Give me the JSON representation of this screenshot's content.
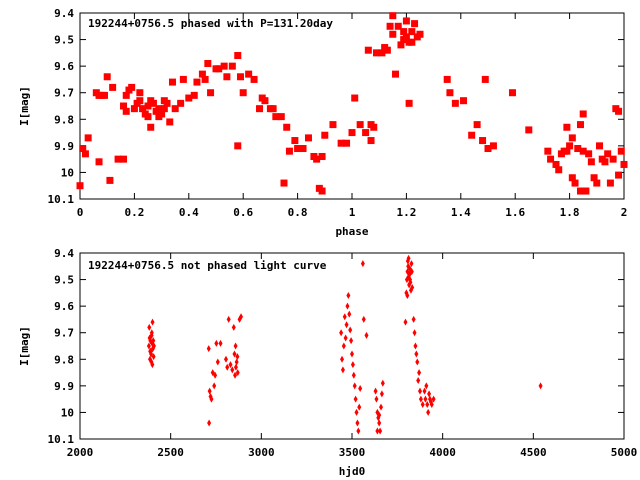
{
  "chart_data": [
    {
      "type": "scatter",
      "title": "192244+0756.5 phased with P=131.20day",
      "xlabel": "phase",
      "ylabel": "I[mag]",
      "xlim": [
        0,
        2
      ],
      "ylim": [
        9.4,
        10.1
      ],
      "y_inverted": true,
      "xticks": [
        "0",
        "0.2",
        "0.4",
        "0.6",
        "0.8",
        "1",
        "1.2",
        "1.4",
        "1.6",
        "1.8",
        "2"
      ],
      "yticks": [
        "9.4",
        "9.5",
        "9.6",
        "9.7",
        "9.8",
        "9.9",
        "10",
        "10.1"
      ],
      "marker": "filled-square",
      "color": "#ff0000",
      "grid": false,
      "points": [
        [
          0.0,
          10.05
        ],
        [
          0.01,
          9.91
        ],
        [
          0.02,
          9.93
        ],
        [
          0.03,
          9.87
        ],
        [
          0.06,
          9.7
        ],
        [
          0.07,
          9.96
        ],
        [
          0.07,
          9.71
        ],
        [
          0.08,
          9.71
        ],
        [
          0.09,
          9.71
        ],
        [
          0.1,
          9.64
        ],
        [
          0.11,
          10.03
        ],
        [
          0.12,
          9.68
        ],
        [
          0.14,
          9.95
        ],
        [
          0.16,
          9.95
        ],
        [
          0.16,
          9.75
        ],
        [
          0.17,
          9.71
        ],
        [
          0.17,
          9.77
        ],
        [
          0.18,
          9.69
        ],
        [
          0.19,
          9.68
        ],
        [
          0.2,
          9.76
        ],
        [
          0.21,
          9.74
        ],
        [
          0.22,
          9.73
        ],
        [
          0.22,
          9.7
        ],
        [
          0.23,
          9.76
        ],
        [
          0.24,
          9.78
        ],
        [
          0.25,
          9.75
        ],
        [
          0.25,
          9.79
        ],
        [
          0.26,
          9.73
        ],
        [
          0.26,
          9.83
        ],
        [
          0.27,
          9.74
        ],
        [
          0.28,
          9.77
        ],
        [
          0.29,
          9.76
        ],
        [
          0.29,
          9.79
        ],
        [
          0.3,
          9.78
        ],
        [
          0.31,
          9.73
        ],
        [
          0.31,
          9.76
        ],
        [
          0.32,
          9.74
        ],
        [
          0.33,
          9.81
        ],
        [
          0.34,
          9.66
        ],
        [
          0.35,
          9.76
        ],
        [
          0.37,
          9.74
        ],
        [
          0.38,
          9.65
        ],
        [
          0.4,
          9.72
        ],
        [
          0.42,
          9.71
        ],
        [
          0.43,
          9.66
        ],
        [
          0.45,
          9.63
        ],
        [
          0.46,
          9.65
        ],
        [
          0.47,
          9.59
        ],
        [
          0.48,
          9.7
        ],
        [
          0.5,
          9.61
        ],
        [
          0.51,
          9.61
        ],
        [
          0.53,
          9.6
        ],
        [
          0.54,
          9.64
        ],
        [
          0.56,
          9.6
        ],
        [
          0.58,
          9.56
        ],
        [
          0.58,
          9.9
        ],
        [
          0.59,
          9.64
        ],
        [
          0.6,
          9.7
        ],
        [
          0.62,
          9.63
        ],
        [
          0.64,
          9.65
        ],
        [
          0.66,
          9.76
        ],
        [
          0.67,
          9.72
        ],
        [
          0.68,
          9.73
        ],
        [
          0.7,
          9.76
        ],
        [
          0.71,
          9.76
        ],
        [
          0.72,
          9.79
        ],
        [
          0.74,
          9.79
        ],
        [
          0.75,
          10.04
        ],
        [
          0.76,
          9.83
        ],
        [
          0.77,
          9.92
        ],
        [
          0.79,
          9.88
        ],
        [
          0.8,
          9.91
        ],
        [
          0.82,
          9.91
        ],
        [
          0.84,
          9.87
        ],
        [
          0.86,
          9.94
        ],
        [
          0.87,
          9.95
        ],
        [
          0.88,
          10.06
        ],
        [
          0.89,
          10.07
        ],
        [
          0.89,
          9.94
        ],
        [
          0.9,
          9.86
        ],
        [
          0.93,
          9.82
        ],
        [
          0.96,
          9.89
        ],
        [
          0.98,
          9.89
        ],
        [
          1.0,
          9.85
        ],
        [
          1.01,
          9.72
        ],
        [
          1.03,
          9.82
        ],
        [
          1.05,
          9.85
        ],
        [
          1.06,
          9.54
        ],
        [
          1.07,
          9.88
        ],
        [
          1.07,
          9.82
        ],
        [
          1.08,
          9.83
        ],
        [
          1.09,
          9.55
        ],
        [
          1.11,
          9.55
        ],
        [
          1.12,
          9.53
        ],
        [
          1.13,
          9.54
        ],
        [
          1.14,
          9.45
        ],
        [
          1.15,
          9.41
        ],
        [
          1.15,
          9.48
        ],
        [
          1.16,
          9.63
        ],
        [
          1.17,
          9.45
        ],
        [
          1.18,
          9.52
        ],
        [
          1.19,
          9.47
        ],
        [
          1.19,
          9.5
        ],
        [
          1.2,
          9.43
        ],
        [
          1.2,
          9.49
        ],
        [
          1.21,
          9.51
        ],
        [
          1.21,
          9.74
        ],
        [
          1.22,
          9.47
        ],
        [
          1.22,
          9.51
        ],
        [
          1.23,
          9.44
        ],
        [
          1.24,
          9.49
        ],
        [
          1.25,
          9.48
        ],
        [
          1.35,
          9.65
        ],
        [
          1.36,
          9.7
        ],
        [
          1.38,
          9.74
        ],
        [
          1.41,
          9.73
        ],
        [
          1.44,
          9.86
        ],
        [
          1.46,
          9.82
        ],
        [
          1.48,
          9.88
        ],
        [
          1.49,
          9.65
        ],
        [
          1.5,
          9.91
        ],
        [
          1.52,
          9.9
        ],
        [
          1.59,
          9.7
        ],
        [
          1.65,
          9.84
        ],
        [
          1.72,
          9.92
        ],
        [
          1.73,
          9.95
        ],
        [
          1.75,
          9.97
        ],
        [
          1.76,
          9.99
        ],
        [
          1.77,
          9.93
        ],
        [
          1.78,
          9.92
        ],
        [
          1.79,
          9.83
        ],
        [
          1.79,
          9.92
        ],
        [
          1.8,
          9.9
        ],
        [
          1.81,
          10.02
        ],
        [
          1.81,
          9.87
        ],
        [
          1.82,
          10.04
        ],
        [
          1.83,
          9.91
        ],
        [
          1.84,
          10.07
        ],
        [
          1.84,
          9.82
        ],
        [
          1.85,
          9.92
        ],
        [
          1.85,
          10.07
        ],
        [
          1.85,
          9.78
        ],
        [
          1.86,
          10.07
        ],
        [
          1.87,
          9.93
        ],
        [
          1.88,
          9.96
        ],
        [
          1.89,
          10.02
        ],
        [
          1.9,
          10.04
        ],
        [
          1.91,
          9.9
        ],
        [
          1.92,
          9.95
        ],
        [
          1.93,
          9.96
        ],
        [
          1.94,
          9.93
        ],
        [
          1.95,
          10.04
        ],
        [
          1.96,
          9.95
        ],
        [
          1.97,
          9.76
        ],
        [
          1.98,
          10.01
        ],
        [
          1.98,
          9.77
        ],
        [
          1.99,
          9.92
        ],
        [
          2.0,
          9.97
        ]
      ]
    },
    {
      "type": "scatter",
      "title": "192244+0756.5 not phased light curve",
      "xlabel": "hjd0",
      "ylabel": "I[mag]",
      "xlim": [
        2000,
        5000
      ],
      "ylim": [
        9.4,
        10.1
      ],
      "y_inverted": true,
      "xticks": [
        "2000",
        "2500",
        "3000",
        "3500",
        "4000",
        "4500",
        "5000"
      ],
      "yticks": [
        "9.4",
        "9.5",
        "9.6",
        "9.7",
        "9.8",
        "9.9",
        "10",
        "10.1"
      ],
      "marker": "small-diamond",
      "color": "#ff0000",
      "grid": false,
      "points": [
        [
          2380,
          9.75
        ],
        [
          2382,
          9.68
        ],
        [
          2384,
          9.72
        ],
        [
          2386,
          9.8
        ],
        [
          2388,
          9.73
        ],
        [
          2390,
          9.77
        ],
        [
          2392,
          9.78
        ],
        [
          2394,
          9.81
        ],
        [
          2396,
          9.7
        ],
        [
          2398,
          9.74
        ],
        [
          2400,
          9.66
        ],
        [
          2402,
          9.76
        ],
        [
          2404,
          9.73
        ],
        [
          2406,
          9.79
        ],
        [
          2408,
          9.75
        ],
        [
          2395,
          9.71
        ],
        [
          2387,
          9.77
        ],
        [
          2399,
          9.82
        ],
        [
          2710,
          9.76
        ],
        [
          2712,
          10.04
        ],
        [
          2715,
          9.92
        ],
        [
          2720,
          9.94
        ],
        [
          2725,
          9.95
        ],
        [
          2732,
          9.85
        ],
        [
          2740,
          9.9
        ],
        [
          2745,
          9.86
        ],
        [
          2752,
          9.74
        ],
        [
          2760,
          9.81
        ],
        [
          2775,
          9.74
        ],
        [
          2805,
          9.8
        ],
        [
          2812,
          9.83
        ],
        [
          2820,
          9.65
        ],
        [
          2830,
          9.82
        ],
        [
          2840,
          9.84
        ],
        [
          2848,
          9.68
        ],
        [
          2852,
          9.78
        ],
        [
          2855,
          9.86
        ],
        [
          2858,
          9.75
        ],
        [
          2860,
          9.83
        ],
        [
          2864,
          9.81
        ],
        [
          2868,
          9.79
        ],
        [
          2870,
          9.85
        ],
        [
          2880,
          9.65
        ],
        [
          2888,
          9.64
        ],
        [
          3440,
          9.7
        ],
        [
          3445,
          9.8
        ],
        [
          3450,
          9.84
        ],
        [
          3455,
          9.75
        ],
        [
          3460,
          9.64
        ],
        [
          3465,
          9.72
        ],
        [
          3470,
          9.67
        ],
        [
          3475,
          9.6
        ],
        [
          3480,
          9.56
        ],
        [
          3485,
          9.63
        ],
        [
          3490,
          9.69
        ],
        [
          3495,
          9.73
        ],
        [
          3500,
          9.78
        ],
        [
          3505,
          9.82
        ],
        [
          3510,
          9.86
        ],
        [
          3515,
          9.9
        ],
        [
          3520,
          9.95
        ],
        [
          3525,
          10.0
        ],
        [
          3530,
          10.04
        ],
        [
          3535,
          10.07
        ],
        [
          3540,
          9.98
        ],
        [
          3545,
          9.91
        ],
        [
          3560,
          9.44
        ],
        [
          3565,
          9.65
        ],
        [
          3580,
          9.71
        ],
        [
          3630,
          9.92
        ],
        [
          3635,
          9.95
        ],
        [
          3640,
          10.0
        ],
        [
          3645,
          10.02
        ],
        [
          3650,
          10.04
        ],
        [
          3655,
          10.07
        ],
        [
          3660,
          9.98
        ],
        [
          3665,
          9.93
        ],
        [
          3670,
          9.89
        ],
        [
          3640,
          10.07
        ],
        [
          3650,
          10.01
        ],
        [
          3795,
          9.66
        ],
        [
          3800,
          9.55
        ],
        [
          3803,
          9.5
        ],
        [
          3806,
          9.47
        ],
        [
          3808,
          9.43
        ],
        [
          3810,
          9.45
        ],
        [
          3812,
          9.49
        ],
        [
          3815,
          9.52
        ],
        [
          3818,
          9.48
        ],
        [
          3820,
          9.46
        ],
        [
          3822,
          9.51
        ],
        [
          3825,
          9.54
        ],
        [
          3828,
          9.44
        ],
        [
          3830,
          9.47
        ],
        [
          3832,
          9.53
        ],
        [
          3805,
          9.56
        ],
        [
          3812,
          9.42
        ],
        [
          3820,
          9.5
        ],
        [
          3840,
          9.65
        ],
        [
          3845,
          9.7
        ],
        [
          3850,
          9.75
        ],
        [
          3855,
          9.78
        ],
        [
          3860,
          9.81
        ],
        [
          3865,
          9.88
        ],
        [
          3870,
          9.85
        ],
        [
          3875,
          9.92
        ],
        [
          3880,
          9.95
        ],
        [
          3890,
          9.97
        ],
        [
          3900,
          9.92
        ],
        [
          3905,
          9.95
        ],
        [
          3910,
          9.9
        ],
        [
          3915,
          9.97
        ],
        [
          3920,
          10.0
        ],
        [
          3925,
          9.93
        ],
        [
          3930,
          9.95
        ],
        [
          3935,
          9.96
        ],
        [
          3940,
          9.97
        ],
        [
          3950,
          9.95
        ],
        [
          4540,
          9.9
        ]
      ]
    }
  ]
}
